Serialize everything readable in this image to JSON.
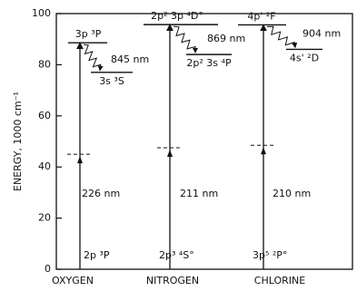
{
  "chart_data": {
    "type": "energy-level",
    "ylabel": "ENERGY, 1000 cm⁻¹",
    "ylim": [
      0,
      100
    ],
    "yticks": [
      0,
      20,
      40,
      60,
      80,
      100
    ],
    "categories": [
      "OXYGEN",
      "NITROGEN",
      "CHLORINE"
    ],
    "ground_values": [
      0,
      0,
      0
    ],
    "ground_labels": [
      "2p ³P",
      "2p³ ⁴S°",
      "3p⁵ ²P°"
    ],
    "upper_values": [
      88.6,
      95.7,
      95.6
    ],
    "upper_labels": [
      "3p ³P",
      "2p² 3p ⁴D°",
      "4p' ²F"
    ],
    "lower_values": [
      77,
      84,
      86
    ],
    "lower_labels": [
      "3s ³S",
      "2p² 3s ⁴P",
      "4s' ²D"
    ],
    "intermediate_values": [
      45,
      47.5,
      48.5
    ],
    "absorption_labels": [
      "226 nm",
      "211 nm",
      "210 nm"
    ],
    "emission_labels": [
      "845 nm",
      "869 nm",
      "904 nm"
    ]
  }
}
